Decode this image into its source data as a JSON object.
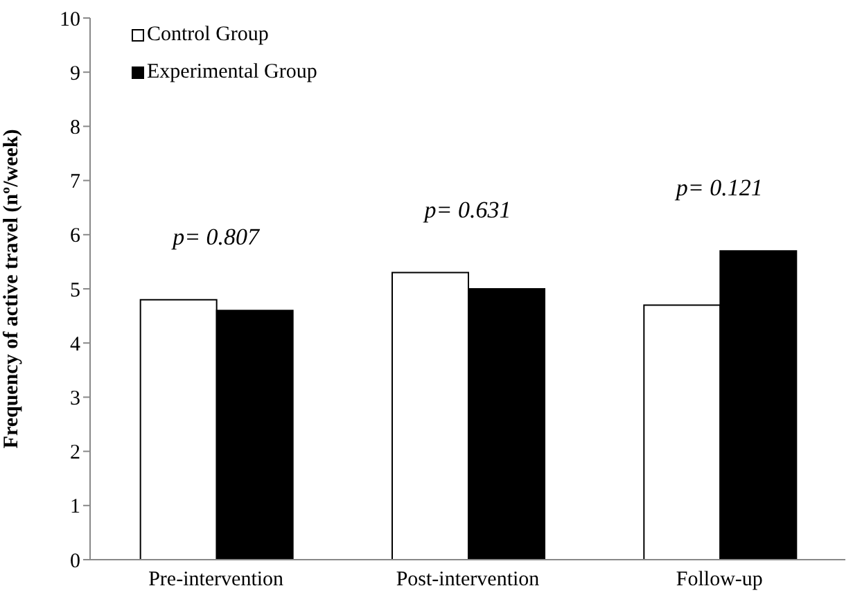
{
  "chart_data": {
    "type": "bar",
    "ylabel": "Frequency of active travel (nº/week)",
    "categories": [
      "Pre-intervention",
      "Post-intervention",
      "Follow-up"
    ],
    "series": [
      {
        "name": "Control Group",
        "color": "#ffffff",
        "values": [
          4.8,
          5.3,
          4.7
        ]
      },
      {
        "name": "Experimental Group",
        "color": "#000000",
        "values": [
          4.6,
          5.0,
          5.7
        ]
      }
    ],
    "ylim": [
      0,
      10
    ],
    "yticks": [
      0,
      1,
      2,
      3,
      4,
      5,
      6,
      7,
      8,
      9,
      10
    ],
    "grid": false,
    "legend": "top left",
    "annotations": [
      "p=  0.807",
      "p= 0.631",
      "p= 0.121"
    ]
  }
}
